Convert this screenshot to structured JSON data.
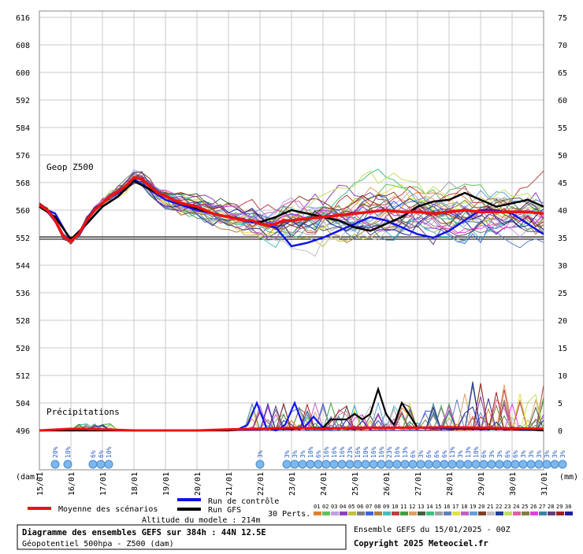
{
  "chart_data": {
    "type": "line",
    "title": "Diagramme des ensembles GEFS sur 384h : 44N 12.5E",
    "subtitle": "Géopotentiel 500hpa - Z500 (dam)",
    "series_label_geop": "Geop Z500",
    "series_label_precip": "Précipitations",
    "unit_left": "(dam)",
    "unit_right": "(mm)",
    "altitude": "Altitude du modele : 214m",
    "run_info": "Ensemble GEFS du 15/01/2025 - 00Z",
    "copyright": "Copyright 2025 Meteociel.fr",
    "legend": {
      "mean": "Moyenne des scénarios",
      "control": "Run de contrôle",
      "gfs": "Run GFS",
      "perts": "30 Perts."
    },
    "y_left_ticks": [
      616,
      608,
      600,
      592,
      584,
      576,
      568,
      560,
      552,
      544,
      536,
      528,
      520,
      512,
      504,
      496
    ],
    "y_right_ticks": [
      75,
      70,
      65,
      60,
      55,
      50,
      45,
      40,
      35,
      30,
      25,
      20,
      15,
      10,
      5,
      0
    ],
    "ylim_left": [
      496,
      616
    ],
    "ylim_right": [
      0,
      75
    ],
    "x_ticks": [
      "15/01",
      "16/01",
      "17/01",
      "18/01",
      "19/01",
      "20/01",
      "21/01",
      "22/01",
      "23/01",
      "24/01",
      "25/01",
      "26/01",
      "27/01",
      "28/01",
      "29/01",
      "30/01",
      "31/01"
    ],
    "member_numbers": [
      "01",
      "02",
      "03",
      "04",
      "05",
      "06",
      "07",
      "08",
      "09",
      "10",
      "11",
      "12",
      "13",
      "14",
      "15",
      "16",
      "17",
      "18",
      "19",
      "20",
      "21",
      "22",
      "23",
      "24",
      "25",
      "26",
      "27",
      "28",
      "29",
      "30"
    ],
    "member_colors": [
      "#e08030",
      "#60c060",
      "#c0a0e0",
      "#9040c0",
      "#c0c040",
      "#808080",
      "#4060e0",
      "#b08040",
      "#40c0c0",
      "#c04040",
      "#40a040",
      "#e0a060",
      "#406040",
      "#40c080",
      "#a0a0a0",
      "#6080c0",
      "#e0e040",
      "#c060c0",
      "#60a0e0",
      "#804020",
      "#c0c0c0",
      "#2040a0",
      "#c0e060",
      "#e060a0",
      "#808040",
      "#e040e0",
      "#4080a0",
      "#604080",
      "#a02020",
      "#2020a0"
    ],
    "baseline_z500": 552,
    "snow_labels": [
      {
        "x": 0.5,
        "t": "20%"
      },
      {
        "x": 0.9,
        "t": "10%"
      },
      {
        "x": 1.7,
        "t": "6%"
      },
      {
        "x": 1.95,
        "t": "6%"
      },
      {
        "x": 2.2,
        "t": "10%"
      },
      {
        "x": 7.0,
        "t": "3%"
      },
      {
        "x": 7.85,
        "t": "3%"
      },
      {
        "x": 8.1,
        "t": "3%"
      },
      {
        "x": 8.35,
        "t": "3%"
      },
      {
        "x": 8.6,
        "t": "10%"
      },
      {
        "x": 8.85,
        "t": "6%"
      },
      {
        "x": 9.1,
        "t": "16%"
      },
      {
        "x": 9.35,
        "t": "16%"
      },
      {
        "x": 9.6,
        "t": "16%"
      },
      {
        "x": 9.85,
        "t": "23%"
      },
      {
        "x": 10.1,
        "t": "16%"
      },
      {
        "x": 10.35,
        "t": "10%"
      },
      {
        "x": 10.6,
        "t": "16%"
      },
      {
        "x": 10.85,
        "t": "16%"
      },
      {
        "x": 11.1,
        "t": "23%"
      },
      {
        "x": 11.35,
        "t": "16%"
      },
      {
        "x": 11.6,
        "t": "13%"
      },
      {
        "x": 11.85,
        "t": "6%"
      },
      {
        "x": 12.1,
        "t": "3%"
      },
      {
        "x": 12.35,
        "t": "6%"
      },
      {
        "x": 12.6,
        "t": "6%"
      },
      {
        "x": 12.85,
        "t": "6%"
      },
      {
        "x": 13.1,
        "t": "13%"
      },
      {
        "x": 13.35,
        "t": "3%"
      },
      {
        "x": 13.6,
        "t": "13%"
      },
      {
        "x": 13.85,
        "t": "10%"
      },
      {
        "x": 14.1,
        "t": "6%"
      },
      {
        "x": 14.35,
        "t": "3%"
      },
      {
        "x": 14.6,
        "t": "3%"
      },
      {
        "x": 14.85,
        "t": "6%"
      },
      {
        "x": 15.1,
        "t": "6%"
      },
      {
        "x": 15.35,
        "t": "3%"
      },
      {
        "x": 15.6,
        "t": "3%"
      },
      {
        "x": 15.85,
        "t": "3%"
      },
      {
        "x": 16.1,
        "t": "3%"
      },
      {
        "x": 16.35,
        "t": "3%"
      },
      {
        "x": 16.6,
        "t": "3%"
      }
    ],
    "series": [
      {
        "name": "Moyenne des scénarios",
        "color": "#ee1111",
        "x": [
          0,
          0.25,
          0.5,
          0.75,
          1,
          1.25,
          1.5,
          1.75,
          2,
          2.25,
          2.5,
          2.75,
          3,
          3.25,
          3.5,
          3.75,
          4,
          4.25,
          4.5,
          4.75,
          5,
          5.25,
          5.5,
          5.75,
          6,
          6.25,
          6.5,
          6.75,
          7,
          7.25,
          7.5,
          7.75,
          8,
          8.5,
          9,
          9.5,
          10,
          10.5,
          11,
          11.5,
          12,
          12.5,
          13,
          13.5,
          14,
          14.5,
          15,
          15.5,
          16
        ],
        "values": [
          561.5,
          560,
          557,
          552.5,
          551,
          553,
          557,
          560,
          562,
          564,
          565.5,
          567,
          569.5,
          569,
          567,
          565,
          564,
          563,
          562,
          561.5,
          561,
          560,
          559,
          558.5,
          558,
          557.5,
          557,
          557,
          556,
          555.5,
          556,
          557,
          557,
          557.5,
          558,
          558.5,
          559,
          559.5,
          560,
          559.5,
          559.5,
          559,
          559.5,
          560,
          559.5,
          559.5,
          559.5,
          559.5,
          559
        ]
      },
      {
        "name": "Run de contrôle",
        "color": "#1111ee",
        "x": [
          0,
          0.5,
          1,
          1.5,
          2,
          2.5,
          3,
          3.5,
          4,
          4.5,
          5,
          5.5,
          6,
          6.5,
          7,
          7.5,
          8,
          8.5,
          9,
          9.5,
          10,
          10.5,
          11,
          11.5,
          12,
          12.5,
          13,
          13.5,
          14,
          14.5,
          15,
          15.5,
          16
        ],
        "values": [
          561,
          559,
          551,
          556,
          561,
          564,
          569,
          566,
          563,
          561.5,
          560,
          559,
          558,
          557,
          556,
          555,
          549.5,
          550.5,
          552,
          554,
          556,
          558,
          557,
          555,
          553,
          552,
          554,
          557,
          560,
          560,
          559,
          556,
          553
        ]
      },
      {
        "name": "Run GFS",
        "color": "#000000",
        "x": [
          0,
          0.5,
          1,
          1.5,
          2,
          2.5,
          3,
          3.5,
          4,
          4.5,
          5,
          5.5,
          6,
          6.5,
          7,
          7.5,
          8,
          8.5,
          9,
          9.5,
          10,
          10.5,
          11,
          11.5,
          12,
          12.5,
          13,
          13.5,
          14,
          14.5,
          15,
          15.5,
          16
        ],
        "values": [
          561,
          558,
          551.5,
          556,
          561,
          564,
          568.5,
          566,
          564,
          562,
          560.5,
          559,
          558,
          557,
          556.5,
          558,
          560,
          559,
          558,
          557,
          555,
          554,
          556,
          558,
          561,
          562.5,
          563,
          565,
          563,
          561,
          562,
          563,
          561
        ]
      }
    ],
    "precip_series": [
      {
        "name": "Run de contrôle",
        "color": "#1111ee",
        "x": [
          0,
          1,
          2,
          3,
          4,
          5,
          6,
          6.3,
          6.6,
          6.9,
          7.2,
          7.5,
          7.8,
          8.1,
          8.4,
          8.7,
          9,
          10,
          11,
          12,
          13,
          14,
          15,
          16
        ],
        "values": [
          0,
          0,
          0,
          0,
          0,
          0,
          0,
          0.2,
          1,
          5,
          0.5,
          0,
          1,
          5,
          0.5,
          2.5,
          0.5,
          0.3,
          0.5,
          0.5,
          0.3,
          0.3,
          0.3,
          0
        ]
      },
      {
        "name": "Run GFS",
        "color": "#000000",
        "x": [
          0,
          1,
          2,
          3,
          4,
          5,
          6,
          7,
          8,
          9,
          9.25,
          9.5,
          9.75,
          10,
          10.25,
          10.5,
          10.75,
          11,
          11.25,
          11.5,
          12,
          13,
          14,
          15,
          16
        ],
        "values": [
          0,
          0,
          0,
          0,
          0,
          0,
          0,
          0.3,
          0.3,
          0.5,
          2,
          2,
          2,
          3,
          2,
          3,
          7.5,
          3,
          1,
          5,
          0.5,
          0.5,
          0.3,
          0.3,
          0
        ]
      },
      {
        "name": "Moyenne des scénarios",
        "color": "#ee1111",
        "x": [
          0,
          1,
          2,
          3,
          4,
          5,
          6,
          7,
          8,
          9,
          10,
          11,
          12,
          13,
          14,
          15,
          16
        ],
        "values": [
          0,
          0.3,
          0.2,
          0,
          0,
          0,
          0.2,
          0.3,
          0.5,
          0.3,
          0.5,
          0.5,
          0.5,
          0.6,
          0.5,
          0.4,
          0.3
        ]
      }
    ]
  }
}
